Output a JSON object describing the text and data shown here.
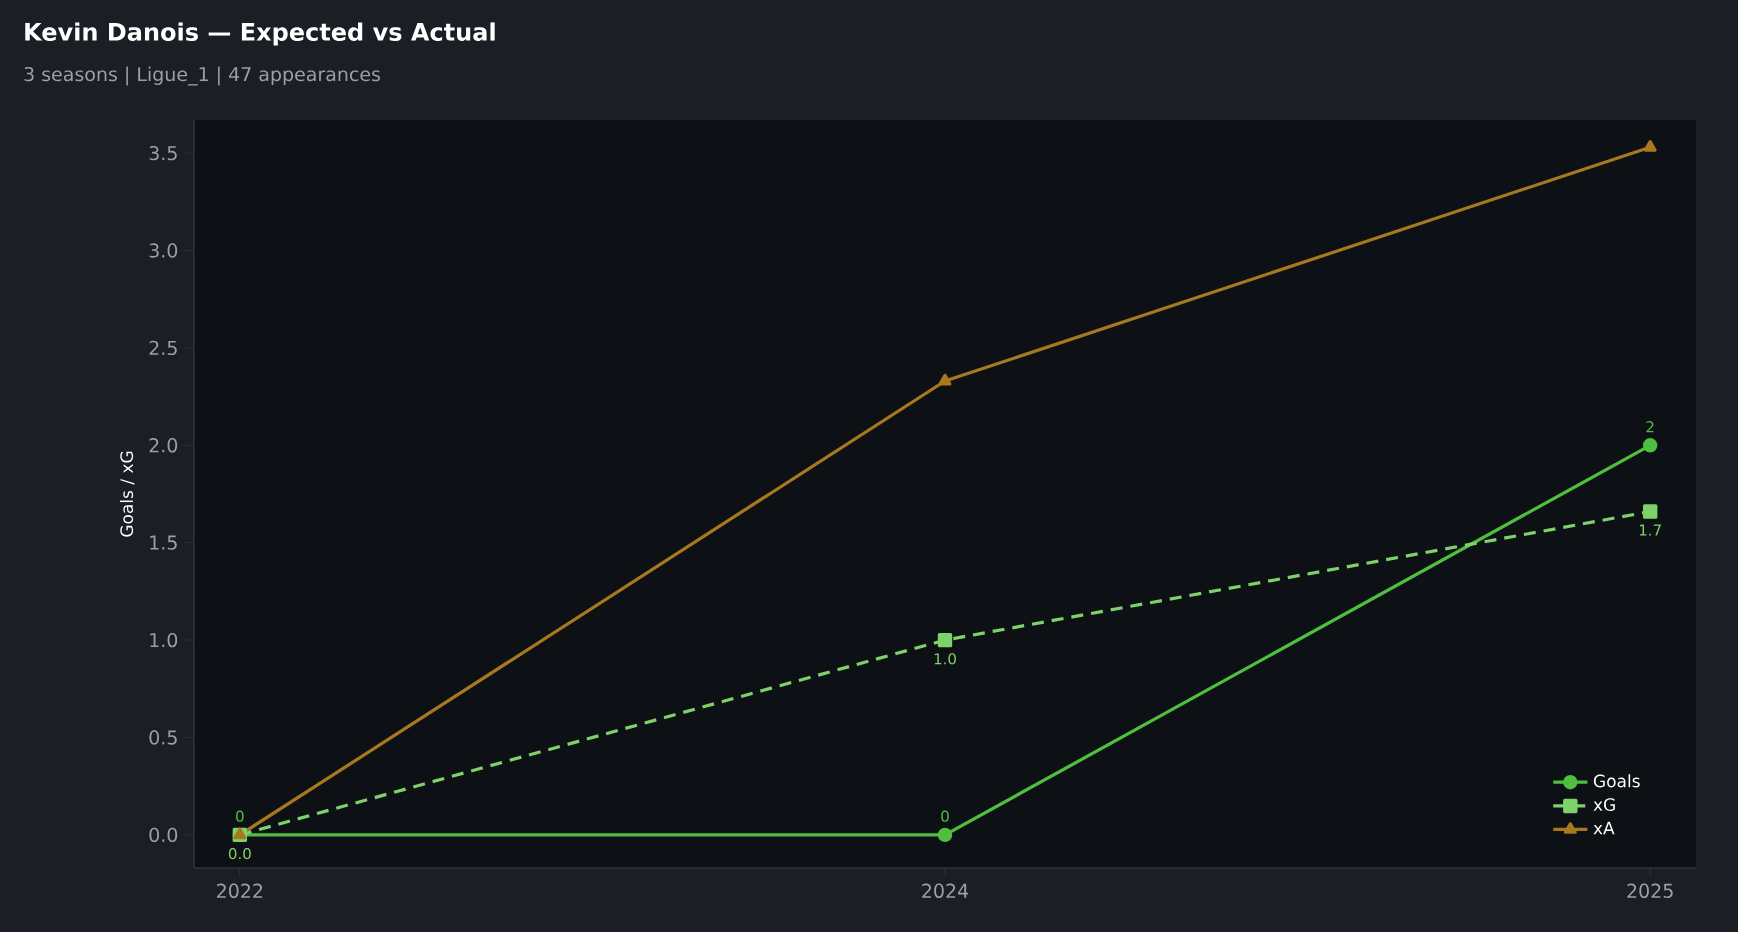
{
  "chart_data": {
    "type": "line",
    "title": "Kevin Danois — Expected vs Actual",
    "subtitle": "3 seasons | Ligue_1 | 47 appearances",
    "ylabel": "Goals / xG",
    "categories": [
      "2022",
      "2024",
      "2025"
    ],
    "ylim": [
      -0.17,
      3.67
    ],
    "yticks": [
      {
        "value": 0,
        "label": "0.0"
      },
      {
        "value": 0.5,
        "label": "0.5"
      },
      {
        "value": 1,
        "label": "1.0"
      },
      {
        "value": 1.5,
        "label": "1.5"
      },
      {
        "value": 2,
        "label": "2.0"
      },
      {
        "value": 2.5,
        "label": "2.5"
      },
      {
        "value": 3,
        "label": "3.0"
      },
      {
        "value": 3.5,
        "label": "3.5"
      }
    ],
    "legend": "bottom right",
    "series": [
      {
        "name": "Goals",
        "color": "#4fbf3f",
        "values": [
          0,
          0,
          2
        ],
        "marker": "circle",
        "line_style": "solid",
        "value_labels": [
          "0",
          "0",
          "2"
        ]
      },
      {
        "name": "xG",
        "color": "#7dd36a",
        "values": [
          0,
          1.0,
          1.66
        ],
        "marker": "square",
        "line_style": "dashed",
        "value_labels": [
          "0.0",
          "1.0",
          "1.7"
        ]
      },
      {
        "name": "xA",
        "color": "#a8781f",
        "values": [
          0,
          2.33,
          3.53
        ],
        "marker": "triangle",
        "line_style": "solid"
      }
    ]
  }
}
